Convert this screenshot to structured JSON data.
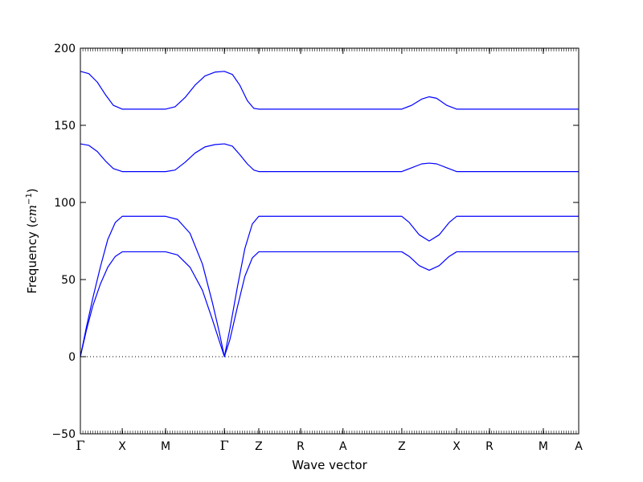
{
  "chart_data": {
    "type": "line",
    "xlabel": "Wave vector",
    "ylabel_main": "Frequency (",
    "ylabel_unit": "cm",
    "ylabel_exp": "−1",
    "ylabel_close": ")",
    "ylim": [
      -50,
      200
    ],
    "yticks": [
      -50,
      0,
      50,
      100,
      150,
      200
    ],
    "ytick_labels": [
      "−50",
      "0",
      "50",
      "100",
      "150",
      "200"
    ],
    "xlim": [
      0,
      1
    ],
    "xticks": [
      {
        "label": "Γ",
        "x": 0.0
      },
      {
        "label": "X",
        "x": 0.084
      },
      {
        "label": "M",
        "x": 0.171
      },
      {
        "label": "Γ",
        "x": 0.289
      },
      {
        "label": "Z",
        "x": 0.358
      },
      {
        "label": "R",
        "x": 0.442
      },
      {
        "label": "A",
        "x": 0.527
      },
      {
        "label": "Z",
        "x": 0.645
      },
      {
        "label": "X",
        "x": 0.755
      },
      {
        "label": "R",
        "x": 0.821
      },
      {
        "label": "M",
        "x": 0.929
      },
      {
        "label": "A",
        "x": 1.0
      }
    ],
    "zero_line": true,
    "grid": false,
    "line_color": "#0000ff",
    "series": [
      {
        "values": [
          [
            0.0,
            185
          ],
          [
            0.017,
            183.5
          ],
          [
            0.034,
            178
          ],
          [
            0.05,
            170
          ],
          [
            0.066,
            163
          ],
          [
            0.084,
            160.5
          ],
          [
            0.171,
            160.5
          ],
          [
            0.19,
            162
          ],
          [
            0.21,
            168
          ],
          [
            0.23,
            176
          ],
          [
            0.25,
            182
          ],
          [
            0.27,
            184.5
          ],
          [
            0.289,
            185
          ],
          [
            0.305,
            183
          ],
          [
            0.32,
            176
          ],
          [
            0.335,
            166
          ],
          [
            0.348,
            161
          ],
          [
            0.358,
            160.5
          ],
          [
            0.645,
            160.5
          ],
          [
            0.665,
            163
          ],
          [
            0.685,
            167
          ],
          [
            0.7,
            168.5
          ],
          [
            0.715,
            167.5
          ],
          [
            0.735,
            163
          ],
          [
            0.755,
            160.5
          ],
          [
            1.0,
            160.5
          ]
        ]
      },
      {
        "values": [
          [
            0.0,
            138
          ],
          [
            0.017,
            137
          ],
          [
            0.034,
            133
          ],
          [
            0.05,
            127
          ],
          [
            0.066,
            122
          ],
          [
            0.084,
            120
          ],
          [
            0.171,
            120
          ],
          [
            0.19,
            121
          ],
          [
            0.21,
            126
          ],
          [
            0.23,
            132
          ],
          [
            0.25,
            136
          ],
          [
            0.27,
            137.5
          ],
          [
            0.289,
            138
          ],
          [
            0.305,
            136.5
          ],
          [
            0.32,
            131
          ],
          [
            0.335,
            125
          ],
          [
            0.348,
            121
          ],
          [
            0.358,
            120
          ],
          [
            0.645,
            120
          ],
          [
            0.665,
            122.5
          ],
          [
            0.685,
            125
          ],
          [
            0.7,
            125.5
          ],
          [
            0.715,
            125
          ],
          [
            0.735,
            122.5
          ],
          [
            0.755,
            120
          ],
          [
            1.0,
            120
          ]
        ]
      },
      {
        "values": [
          [
            0.0,
            0
          ],
          [
            0.012,
            19
          ],
          [
            0.025,
            38
          ],
          [
            0.04,
            58
          ],
          [
            0.055,
            76
          ],
          [
            0.07,
            87
          ],
          [
            0.084,
            91
          ],
          [
            0.171,
            91
          ],
          [
            0.195,
            89
          ],
          [
            0.22,
            80
          ],
          [
            0.245,
            60
          ],
          [
            0.265,
            35
          ],
          [
            0.278,
            17
          ],
          [
            0.289,
            0
          ],
          [
            0.3,
            18
          ],
          [
            0.315,
            45
          ],
          [
            0.33,
            70
          ],
          [
            0.345,
            86
          ],
          [
            0.358,
            91
          ],
          [
            0.645,
            91
          ],
          [
            0.66,
            87
          ],
          [
            0.68,
            79
          ],
          [
            0.7,
            75
          ],
          [
            0.72,
            79
          ],
          [
            0.74,
            87
          ],
          [
            0.755,
            91
          ],
          [
            1.0,
            91
          ]
        ]
      },
      {
        "values": [
          [
            0.0,
            0
          ],
          [
            0.012,
            17
          ],
          [
            0.025,
            33
          ],
          [
            0.04,
            47
          ],
          [
            0.055,
            58
          ],
          [
            0.07,
            65
          ],
          [
            0.084,
            68
          ],
          [
            0.171,
            68
          ],
          [
            0.195,
            66
          ],
          [
            0.22,
            58
          ],
          [
            0.245,
            43
          ],
          [
            0.265,
            24
          ],
          [
            0.278,
            11
          ],
          [
            0.289,
            0
          ],
          [
            0.3,
            11
          ],
          [
            0.315,
            32
          ],
          [
            0.33,
            52
          ],
          [
            0.345,
            64
          ],
          [
            0.358,
            68
          ],
          [
            0.645,
            68
          ],
          [
            0.66,
            65
          ],
          [
            0.68,
            59
          ],
          [
            0.7,
            56
          ],
          [
            0.72,
            59
          ],
          [
            0.74,
            65
          ],
          [
            0.755,
            68
          ],
          [
            1.0,
            68
          ]
        ]
      }
    ]
  }
}
